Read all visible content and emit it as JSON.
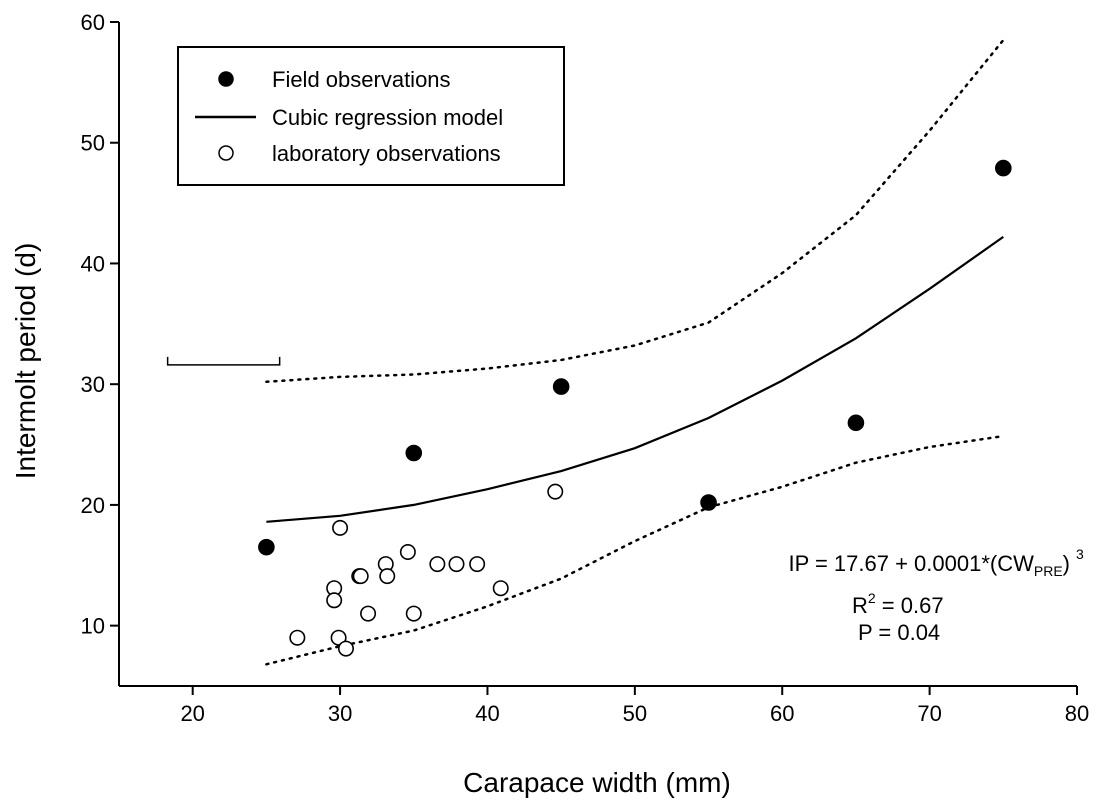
{
  "chart_data": {
    "type": "scatter",
    "xlabel": "Carapace width (mm)",
    "ylabel": "Intermolt period (d)",
    "xlim": [
      15,
      80
    ],
    "ylim": [
      5,
      60
    ],
    "xticks": [
      20,
      30,
      40,
      50,
      60,
      70,
      80
    ],
    "yticks": [
      10,
      20,
      30,
      40,
      50,
      60
    ],
    "grid": false,
    "legend_position": "top-left",
    "legend": [
      {
        "label": "Field observations",
        "marker": "filled-circle"
      },
      {
        "label": "Cubic regression model",
        "marker": "solid-line"
      },
      {
        "label": "laboratory observations",
        "marker": "open-circle"
      }
    ],
    "series": [
      {
        "name": "Field observations",
        "kind": "points",
        "marker": "filled",
        "x": [
          25,
          35,
          45,
          55,
          65,
          75
        ],
        "y": [
          16.5,
          24.3,
          29.8,
          20.2,
          26.8,
          47.9
        ]
      },
      {
        "name": "laboratory observations",
        "kind": "points",
        "marker": "open",
        "x": [
          27.1,
          29.6,
          29.6,
          29.9,
          30.0,
          30.4,
          31.3,
          31.4,
          31.9,
          33.1,
          33.2,
          34.6,
          35.0,
          36.6,
          37.9,
          39.3,
          40.9,
          44.6
        ],
        "y": [
          9.0,
          13.1,
          12.1,
          9.0,
          18.1,
          8.1,
          14.1,
          14.1,
          11.0,
          15.1,
          14.1,
          16.1,
          11.0,
          15.1,
          15.1,
          15.1,
          13.1,
          21.1
        ]
      },
      {
        "name": "Cubic regression model",
        "kind": "line",
        "style": "solid",
        "x": [
          25,
          30,
          35,
          40,
          45,
          50,
          55,
          60,
          65,
          70,
          75
        ],
        "y": [
          18.6,
          19.1,
          20.0,
          21.3,
          22.8,
          24.7,
          27.2,
          30.3,
          33.8,
          37.9,
          42.2
        ]
      },
      {
        "kind": "line",
        "style": "dotted",
        "x": [
          25,
          30,
          35,
          40,
          45,
          50,
          55,
          60,
          65,
          70,
          75
        ],
        "y": [
          30.2,
          30.6,
          30.8,
          31.3,
          32.0,
          33.2,
          35.1,
          39.2,
          44.0,
          51.0,
          58.5
        ]
      },
      {
        "kind": "line",
        "style": "dotted",
        "x": [
          25,
          30,
          35,
          40,
          45,
          50,
          55,
          60,
          65,
          70,
          75
        ],
        "y": [
          6.8,
          8.3,
          9.6,
          11.6,
          13.9,
          17.0,
          19.8,
          21.5,
          23.5,
          24.8,
          25.7
        ]
      }
    ],
    "bracket": {
      "x": [
        18.3,
        25.9
      ],
      "y": 31.6
    },
    "annotations": {
      "equation_prefix": "IP = 17.67 + 0.0001*(CW",
      "equation_sub": "PRE",
      "equation_close": ")",
      "equation_sup": "3",
      "r2_base": "R",
      "r2_sup": "2",
      "r2_value": " = 0.67",
      "p_value": "P = 0.04"
    }
  }
}
